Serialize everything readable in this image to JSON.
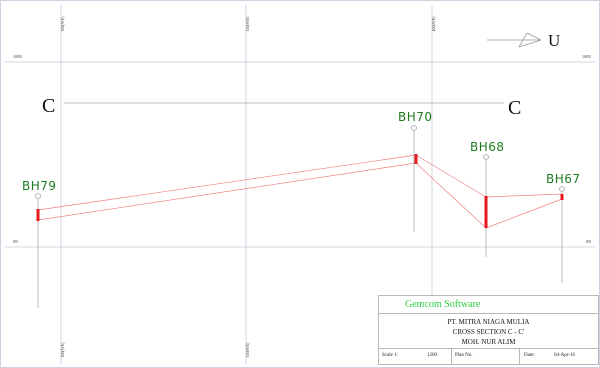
{
  "grid": {
    "easting_labels": [
      "300(WE)",
      "350(WE)",
      "400(WE)"
    ],
    "elev_labels": [
      "100N",
      "0N"
    ]
  },
  "section": {
    "start_label": "C",
    "end_label": "C",
    "north_arrow": "U"
  },
  "boreholes": [
    {
      "id": "BH79"
    },
    {
      "id": "BH70"
    },
    {
      "id": "BH68"
    },
    {
      "id": "BH67"
    }
  ],
  "title_block": {
    "software": "Gemcom Software",
    "company": "PT. MITRA NIAGA MULIA",
    "section_name": "CROSS SECTION C - C'",
    "author": "MOH. NUR ALIM",
    "scale_label": "Scale 1:",
    "scale_value": "1200",
    "plan_label": "Plan No.",
    "date_label": "Date:",
    "date_value": "04-Apr-16"
  },
  "colors": {
    "borehole_line": "#aaaaaa",
    "seam": "#e41a1c",
    "correlation": "#f08080",
    "grid": "#c8c8d8",
    "label_green": "#1f7a1f",
    "software_green": "#2ecc40"
  }
}
